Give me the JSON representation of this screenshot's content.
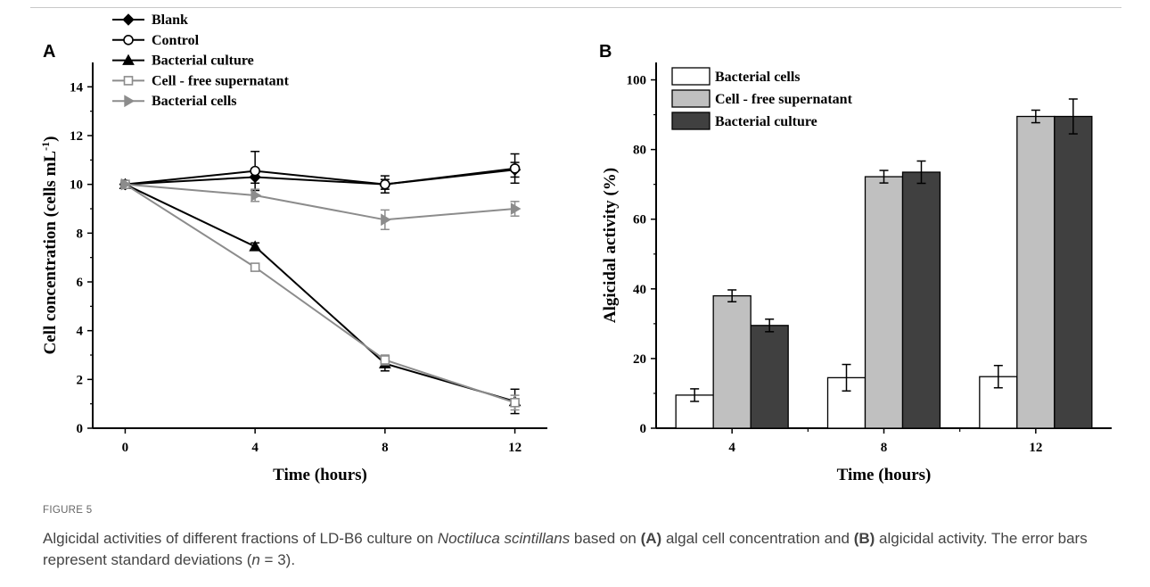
{
  "chart_data": [
    {
      "panel": "A",
      "type": "line",
      "xlabel": "Time (hours)",
      "ylabel": "Cell concentration (cells mL",
      "ylabel_sup": "-1",
      "ylabel_end": ")",
      "x": [
        0,
        4,
        8,
        12
      ],
      "xlim": [
        -1,
        13
      ],
      "ylim": [
        0,
        15
      ],
      "xticks": [
        "0",
        "4",
        "8",
        "12"
      ],
      "yticks": [
        "0",
        "2",
        "4",
        "6",
        "8",
        "10",
        "12",
        "14"
      ],
      "legend_position": "top-left",
      "series": [
        {
          "name": "Blank",
          "marker": "diamond-filled",
          "color": "#000000",
          "values": [
            10,
            10.3,
            10.0,
            10.6
          ],
          "errors": [
            0,
            0.25,
            0.2,
            0.3
          ]
        },
        {
          "name": "Control",
          "marker": "circle-open",
          "color": "#000000",
          "values": [
            10,
            10.55,
            10.0,
            10.65
          ],
          "errors": [
            0,
            0.8,
            0.35,
            0.6
          ]
        },
        {
          "name": "Bacterial culture",
          "marker": "triangle-filled",
          "color": "#000000",
          "values": [
            10,
            7.45,
            2.65,
            1.1
          ],
          "errors": [
            0,
            0.15,
            0.3,
            0.5
          ]
        },
        {
          "name": "Cell - free supernatant",
          "marker": "square-open",
          "color": "#8c8c8c",
          "values": [
            10,
            6.6,
            2.8,
            1.05
          ],
          "errors": [
            0,
            0.15,
            0.2,
            0.3
          ]
        },
        {
          "name": "Bacterial cells",
          "marker": "triangle-right-filled",
          "color": "#8c8c8c",
          "values": [
            10,
            9.55,
            8.55,
            9.0
          ],
          "errors": [
            0,
            0.25,
            0.4,
            0.3
          ]
        }
      ]
    },
    {
      "panel": "B",
      "type": "bar",
      "xlabel": "Time (hours)",
      "ylabel": "Algicidal activity (%)",
      "categories": [
        "4",
        "8",
        "12"
      ],
      "ylim": [
        0,
        105
      ],
      "yticks": [
        "0",
        "20",
        "40",
        "60",
        "80",
        "100"
      ],
      "legend_position": "top-left",
      "series": [
        {
          "name": "Bacterial cells",
          "color": "#ffffff",
          "values": [
            9.5,
            14.5,
            14.8
          ],
          "errors": [
            1.8,
            3.8,
            3.2
          ]
        },
        {
          "name": "Cell - free supernatant",
          "color": "#c0c0c0",
          "values": [
            38.0,
            72.2,
            89.5
          ],
          "errors": [
            1.7,
            1.8,
            1.8
          ]
        },
        {
          "name": "Bacterial culture",
          "color": "#404040",
          "values": [
            29.5,
            73.5,
            89.5
          ],
          "errors": [
            1.8,
            3.2,
            5.0
          ]
        }
      ]
    }
  ],
  "caption": {
    "label": "FIGURE 5",
    "text_1": "Algicidal activities of different fractions of LD-B6 culture on ",
    "species": "Noctiluca scintillans",
    "text_2": " based on ",
    "ref_a": "(A)",
    "text_3": " algal cell concentration and ",
    "ref_b": "(B)",
    "text_4": " algicidal activity. The error bars represent standard deviations (",
    "n_var": "n",
    "text_5": " = 3)."
  }
}
